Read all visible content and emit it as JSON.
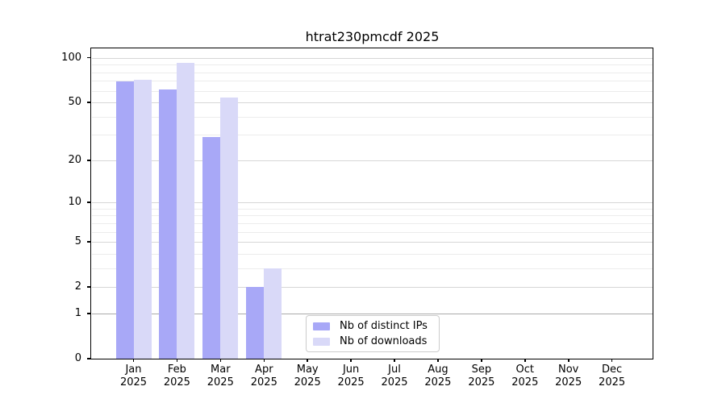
{
  "title": "htrat230pmcdf 2025",
  "chart_data": {
    "type": "bar",
    "title": "htrat230pmcdf 2025",
    "y_scale": "log(1+x)",
    "grid": true,
    "categories": [
      "Jan",
      "Feb",
      "Mar",
      "Apr",
      "May",
      "Jun",
      "Jul",
      "Aug",
      "Sep",
      "Oct",
      "Nov",
      "Dec"
    ],
    "category_year": "2025",
    "series": [
      {
        "name": "Nb of distinct IPs",
        "color": "#a8a8f7",
        "values": [
          69,
          61,
          29,
          2,
          0,
          0,
          0,
          0,
          0,
          0,
          0,
          0
        ]
      },
      {
        "name": "Nb of downloads",
        "color": "#d9d9f8",
        "values": [
          71,
          92,
          54,
          3,
          0,
          0,
          0,
          0,
          0,
          0,
          0,
          0
        ]
      }
    ],
    "yticks": [
      0,
      1,
      2,
      5,
      10,
      20,
      50,
      100
    ],
    "minor_yticks": [
      3,
      4,
      6,
      7,
      8,
      9,
      30,
      40,
      60,
      70,
      80,
      90
    ],
    "ylim": [
      0,
      115
    ],
    "legend_position": "lower-center-inside"
  },
  "colors": {
    "grid_major": "#d6d6d6",
    "grid_minor": "#ececec",
    "grid_unit_line": "#ababab",
    "spine": "#000000",
    "background": "#ffffff"
  }
}
